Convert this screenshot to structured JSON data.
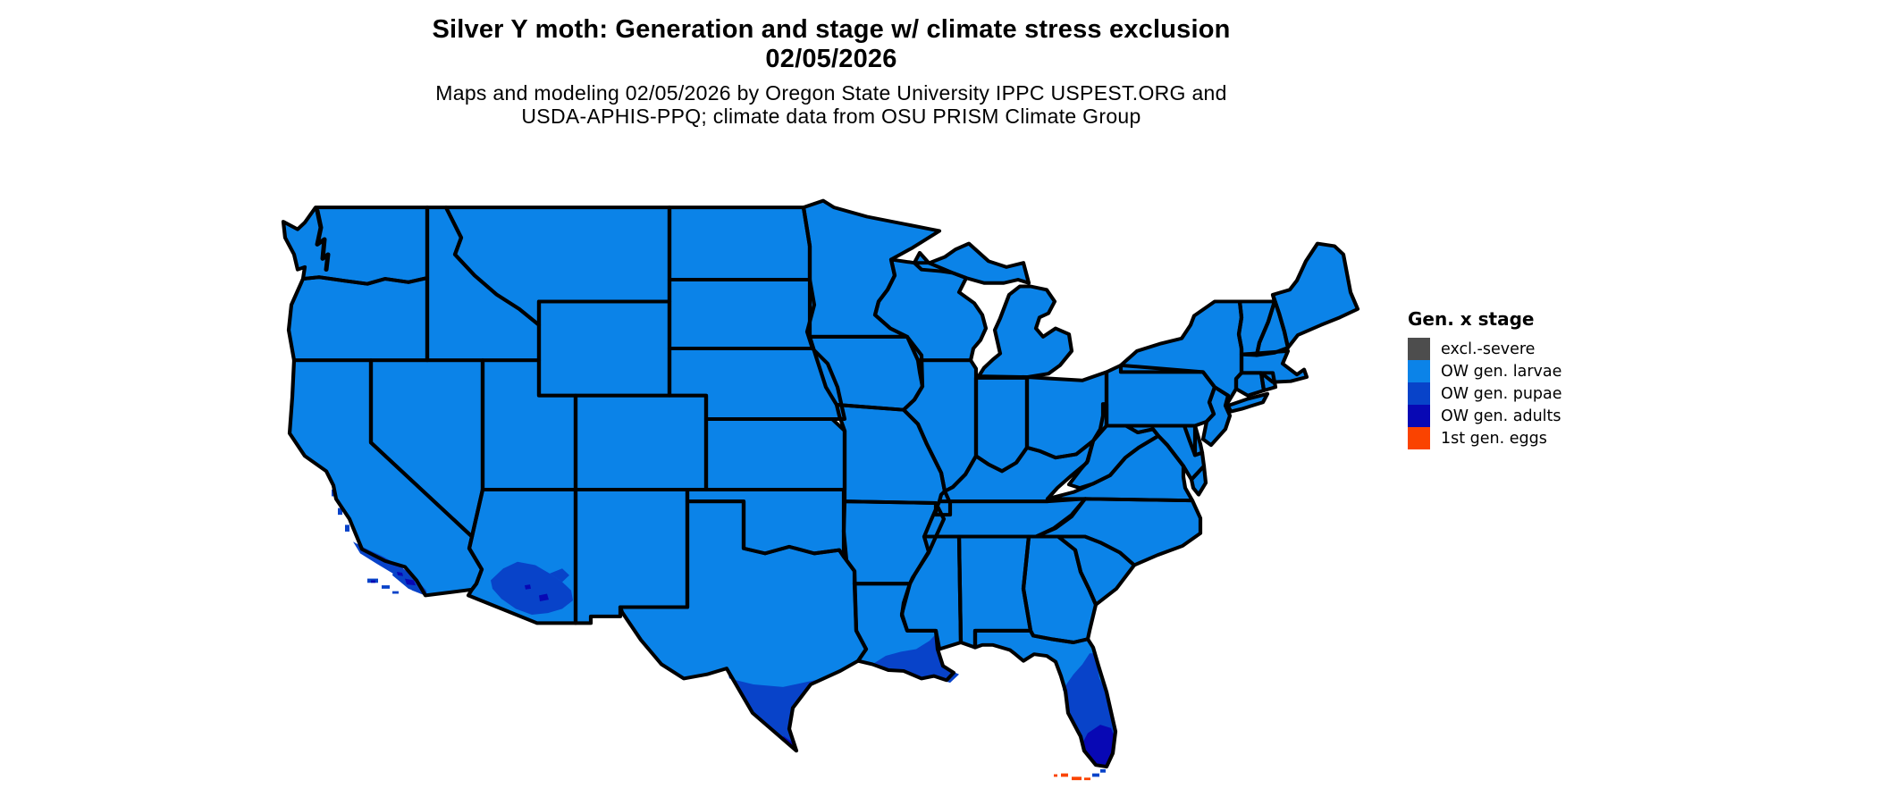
{
  "title": {
    "line1": "Silver Y moth: Generation and stage w/ climate stress exclusion",
    "line2": "02/05/2026"
  },
  "subtitle": {
    "line1": "Maps and modeling 02/05/2026 by Oregon State University IPPC USPEST.ORG and",
    "line2": "USDA-APHIS-PPQ; climate data from OSU PRISM Climate Group"
  },
  "legend": {
    "title": "Gen. x stage",
    "items": [
      {
        "id": "excl_severe",
        "label": "excl.-severe",
        "color": "#4D4D4D"
      },
      {
        "id": "ow_larvae",
        "label": "OW gen. larvae",
        "color": "#0B83E8"
      },
      {
        "id": "ow_pupae",
        "label": "OW gen. pupae",
        "color": "#0843C9"
      },
      {
        "id": "ow_adults",
        "label": "OW gen. adults",
        "color": "#0808B4"
      },
      {
        "id": "first_eggs",
        "label": "1st gen. eggs",
        "color": "#FA4300"
      }
    ]
  },
  "map": {
    "base_fill": "ow_larvae",
    "border_color": "#000000",
    "background_color": "#FFFFFF"
  }
}
